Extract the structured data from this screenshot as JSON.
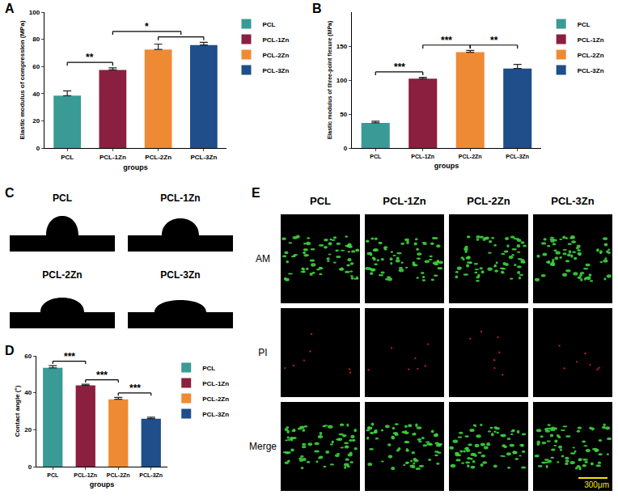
{
  "chart_data": [
    {
      "panel": "A",
      "type": "bar",
      "categories": [
        "PCL",
        "PCL-1Zn",
        "PCL-2Zn",
        "PCL-3Zn"
      ],
      "values": [
        38.5,
        57.5,
        72.5,
        75.8
      ],
      "errors": [
        3.5,
        1.5,
        4,
        2
      ],
      "colors": [
        "#3a9a96",
        "#8b1f3f",
        "#ef8a34",
        "#1f4e8a"
      ],
      "xlabel": "groups",
      "ylabel": "Elastic modulus of compression (MPa)",
      "ylim": [
        0,
        100
      ],
      "yticks": [
        0,
        20,
        40,
        60,
        80,
        100
      ],
      "legend": "top right",
      "significance": [
        {
          "from": "PCL",
          "to": [
            "PCL-1Zn"
          ],
          "label": "**"
        },
        {
          "from": "PCL-1Zn",
          "to": [
            "PCL-2Zn",
            "PCL-3Zn"
          ],
          "label": "*"
        }
      ]
    },
    {
      "panel": "B",
      "type": "bar",
      "categories": [
        "PCL",
        "PCL-1Zn",
        "PCL-2Zn",
        "PCL-3Zn"
      ],
      "values": [
        37,
        102,
        141,
        117
      ],
      "errors": [
        2.5,
        2,
        2.5,
        6
      ],
      "colors": [
        "#3a9a96",
        "#8b1f3f",
        "#ef8a34",
        "#1f4e8a"
      ],
      "xlabel": "groups",
      "ylabel": "Elastic modulus of three-point flexure (MPa)",
      "ylim": [
        0,
        200
      ],
      "yticks": [
        0,
        50,
        100,
        150
      ],
      "legend": "top right",
      "significance": [
        {
          "from": "PCL",
          "to": [
            "PCL-1Zn"
          ],
          "label": "***"
        },
        {
          "from": "PCL-1Zn",
          "to": [
            "PCL-2Zn"
          ],
          "label": "***"
        },
        {
          "from": "PCL-2Zn",
          "to": [
            "PCL-3Zn"
          ],
          "label": "**"
        }
      ]
    },
    {
      "panel": "D",
      "type": "bar",
      "categories": [
        "PCL",
        "PCL-1Zn",
        "PCL-2Zn",
        "PCL-3Zn"
      ],
      "values": [
        53.5,
        44,
        36.5,
        26
      ],
      "errors": [
        1.2,
        0.6,
        1,
        0.8
      ],
      "colors": [
        "#3a9a96",
        "#8b1f3f",
        "#ef8a34",
        "#1f4e8a"
      ],
      "xlabel": "groups",
      "ylabel": "Contact angle (°)",
      "ylim": [
        0,
        60
      ],
      "yticks": [
        0,
        20,
        40,
        60
      ],
      "legend": "top right",
      "significance": [
        {
          "from": "PCL",
          "to": [
            "PCL-1Zn"
          ],
          "label": "***"
        },
        {
          "from": "PCL-1Zn",
          "to": [
            "PCL-2Zn"
          ],
          "label": "***"
        },
        {
          "from": "PCL-2Zn",
          "to": [
            "PCL-3Zn"
          ],
          "label": "***"
        }
      ]
    }
  ],
  "contact_angle_images": {
    "panel": "C",
    "labels": [
      "PCL",
      "PCL-1Zn",
      "PCL-2Zn",
      "PCL-3Zn"
    ]
  },
  "live_dead_images": {
    "panel": "E",
    "columns": [
      "PCL",
      "PCL-1Zn",
      "PCL-2Zn",
      "PCL-3Zn"
    ],
    "rows": [
      "AM",
      "PI",
      "Merge"
    ],
    "scale_bar": "300μm"
  }
}
